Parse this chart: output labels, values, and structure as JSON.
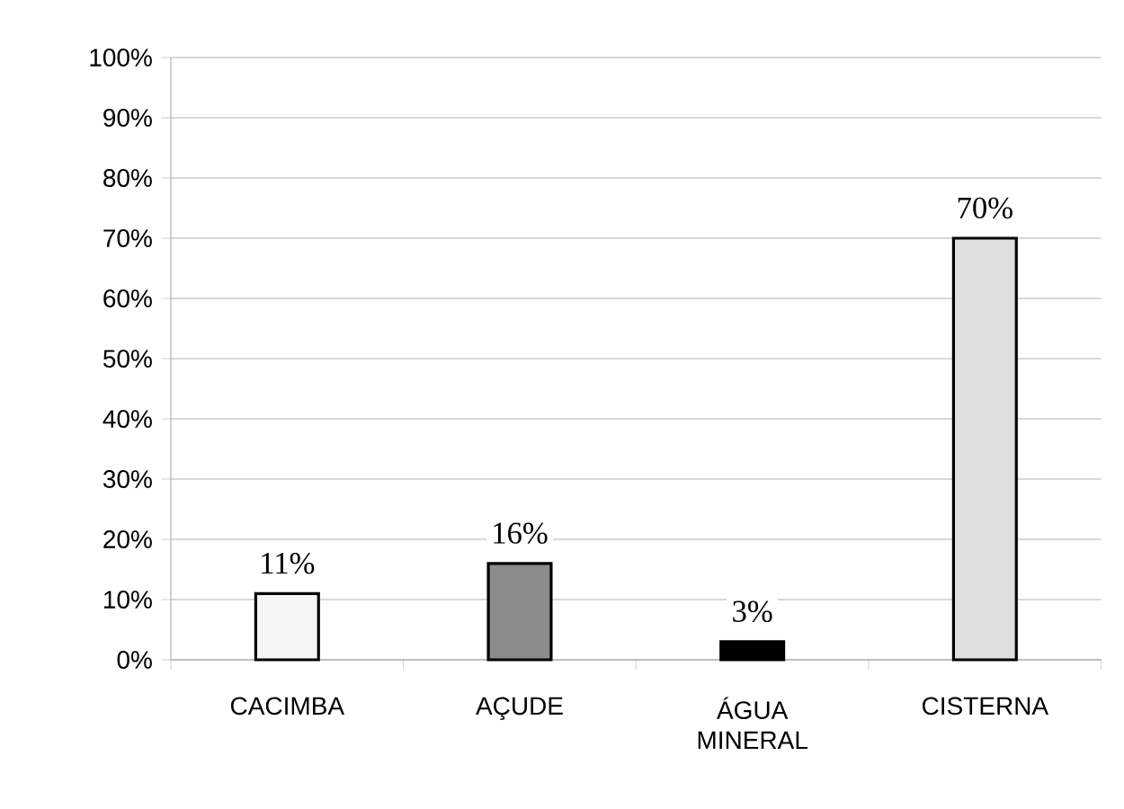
{
  "chart_data": {
    "type": "bar",
    "categories": [
      "CACIMBA",
      "AÇUDE",
      "ÁGUA MINERAL",
      "CISTERNA"
    ],
    "values": [
      11,
      16,
      3,
      70
    ],
    "value_labels": [
      "11%",
      "16%",
      "3%",
      "70%"
    ],
    "colors": [
      "#f5f5f5",
      "#8c8c8c",
      "#000000",
      "#e0e0e0"
    ],
    "ylim": [
      0,
      100
    ],
    "yticks": [
      {
        "value": 0,
        "label": "0%"
      },
      {
        "value": 10,
        "label": "10%"
      },
      {
        "value": 20,
        "label": "20%"
      },
      {
        "value": 30,
        "label": "30%"
      },
      {
        "value": 40,
        "label": "40%"
      },
      {
        "value": 50,
        "label": "50%"
      },
      {
        "value": 60,
        "label": "60%"
      },
      {
        "value": 70,
        "label": "70%"
      },
      {
        "value": 80,
        "label": "80%"
      },
      {
        "value": 90,
        "label": "90%"
      },
      {
        "value": 100,
        "label": "100%"
      }
    ],
    "grid": "y"
  }
}
